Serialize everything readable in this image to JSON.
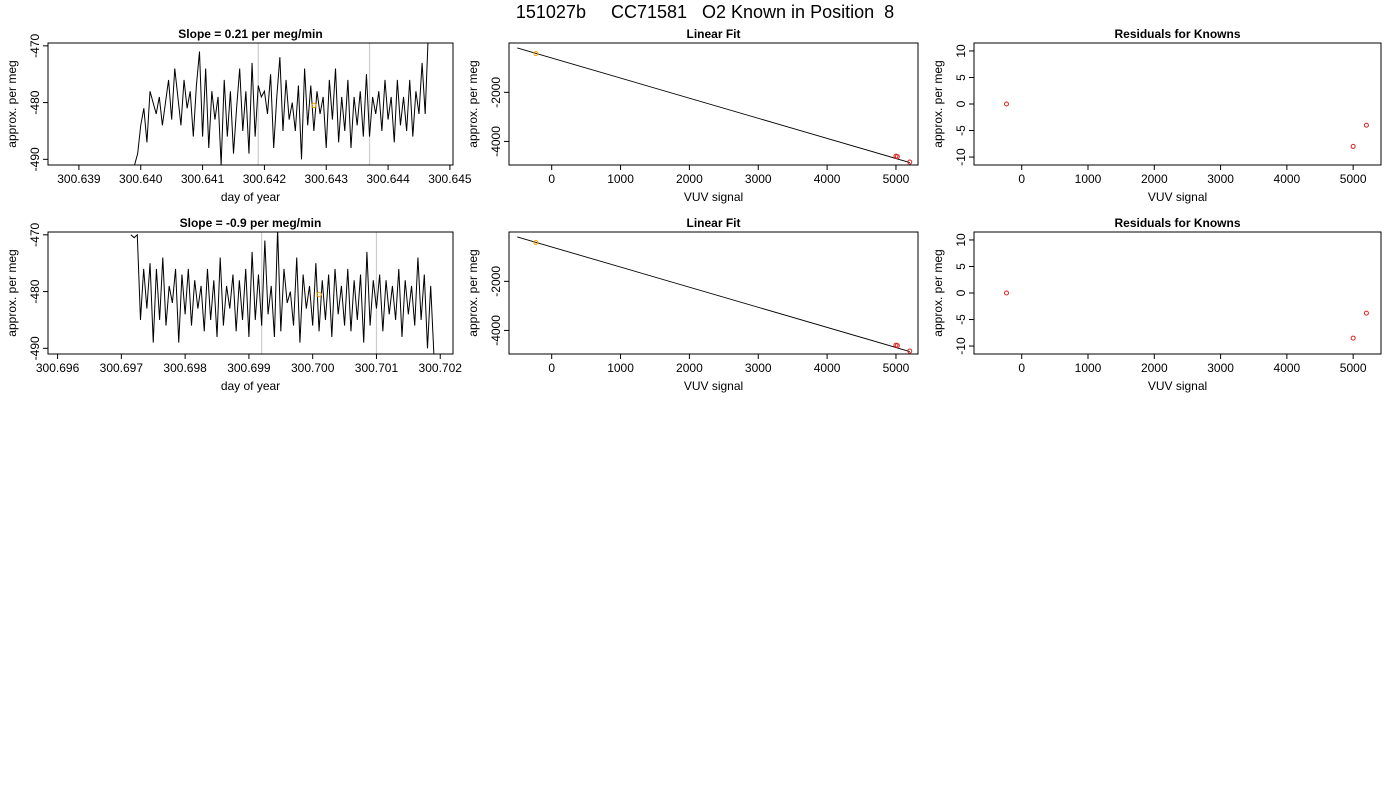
{
  "title": "151027b     CC71581   O2 Known in Position  8",
  "colors": {
    "line": "#000000",
    "marker_red": "#dd2222",
    "marker_orange": "#ffa500",
    "vline": "#cccccc"
  },
  "chart_data": [
    {
      "type": "line",
      "title": "Slope =  0.21  per meg/min",
      "xlabel": "day of year",
      "ylabel": "approx. per meg",
      "xlim": [
        300.6385,
        300.64505
      ],
      "ylim": [
        -491,
        -469.5
      ],
      "xticks": [
        300.639,
        300.64,
        300.641,
        300.642,
        300.643,
        300.644,
        300.645
      ],
      "xtick_labels": [
        "300.639",
        "300.640",
        "300.641",
        "300.642",
        "300.643",
        "300.644",
        "300.645"
      ],
      "yticks": [
        -470,
        -480,
        -490
      ],
      "ytick_labels": [
        "-470",
        "-480",
        "-490"
      ],
      "vlines": [
        300.6419,
        300.6437
      ],
      "marker": {
        "x": 300.6428,
        "y": -480.5,
        "color": "#ffa500"
      },
      "series": [
        {
          "x": [
            300.6399,
            300.63995,
            300.64,
            300.64005,
            300.6401,
            300.64015,
            300.6402,
            300.64025,
            300.6403,
            300.64035,
            300.6404,
            300.64045,
            300.6405,
            300.64055,
            300.6406,
            300.64065,
            300.6407,
            300.64075,
            300.6408,
            300.64085,
            300.6409,
            300.64095,
            300.641,
            300.64105,
            300.6411,
            300.64115,
            300.6412,
            300.64125,
            300.6413,
            300.64135,
            300.6414,
            300.64145,
            300.6415,
            300.64155,
            300.6416,
            300.64165,
            300.6417,
            300.64175,
            300.6418,
            300.64185,
            300.6419,
            300.64195,
            300.642,
            300.64205,
            300.6421,
            300.64215,
            300.6422,
            300.64225,
            300.6423,
            300.64235,
            300.6424,
            300.64245,
            300.6425,
            300.64255,
            300.6426,
            300.64265,
            300.6427,
            300.64275,
            300.6428,
            300.64285,
            300.6429,
            300.64295,
            300.643,
            300.64305,
            300.6431,
            300.64315,
            300.6432,
            300.64325,
            300.6433,
            300.64335,
            300.6434,
            300.64345,
            300.6435,
            300.64355,
            300.6436,
            300.64365,
            300.6437,
            300.64375,
            300.6438,
            300.64385,
            300.6439,
            300.64395,
            300.644,
            300.64405,
            300.6441,
            300.64415,
            300.6442,
            300.64425,
            300.6443,
            300.64435,
            300.6444,
            300.64445,
            300.6445,
            300.64455,
            300.6446,
            300.64465
          ],
          "y": [
            -491,
            -489,
            -484,
            -481,
            -487,
            -478,
            -480,
            -482,
            -479,
            -484,
            -480,
            -476,
            -483,
            -474,
            -479,
            -484,
            -476,
            -481,
            -478,
            -486,
            -477,
            -471,
            -486,
            -474,
            -488,
            -478,
            -483,
            -479,
            -491,
            -476,
            -486,
            -478,
            -489,
            -481,
            -474,
            -485,
            -478,
            -489,
            -473,
            -486,
            -477,
            -479,
            -478,
            -482,
            -475,
            -488,
            -479,
            -472,
            -485,
            -476,
            -483,
            -480,
            -485,
            -477,
            -490,
            -474,
            -484,
            -477,
            -485,
            -478,
            -482,
            -479,
            -488,
            -476,
            -483,
            -474,
            -487,
            -479,
            -485,
            -476,
            -488,
            -479,
            -484,
            -478,
            -486,
            -475,
            -486,
            -479,
            -482,
            -478,
            -485,
            -476,
            -483,
            -479,
            -487,
            -476,
            -484,
            -479,
            -485,
            -476,
            -486,
            -478,
            -482,
            -473,
            -482,
            -468
          ]
        }
      ]
    },
    {
      "type": "line",
      "title": "Linear Fit",
      "xlabel": "VUV signal",
      "ylabel": "approx. per meg",
      "xlim": [
        -620,
        5320
      ],
      "ylim": [
        -4960,
        10
      ],
      "xticks": [
        0,
        1000,
        2000,
        3000,
        4000,
        5000
      ],
      "xtick_labels": [
        "0",
        "1000",
        "2000",
        "3000",
        "4000",
        "5000"
      ],
      "yticks": [
        -2000,
        -4000
      ],
      "ytick_labels": [
        "-2000",
        "-4000"
      ],
      "line": {
        "x": [
          -500,
          5200
        ],
        "y": [
          -190,
          -4860
        ]
      },
      "points": [
        {
          "x": -230,
          "y": -420,
          "color": "#ffa500"
        },
        {
          "x": 5000,
          "y": -4600,
          "color": "#dd2222"
        },
        {
          "x": 5020,
          "y": -4620,
          "color": "#dd2222"
        },
        {
          "x": 5200,
          "y": -4840,
          "color": "#dd2222"
        }
      ]
    },
    {
      "type": "scatter",
      "title": "Residuals for Knowns",
      "xlabel": "VUV signal",
      "ylabel": "approx. per meg",
      "xlim": [
        -720,
        5420
      ],
      "ylim": [
        -11.5,
        11.5
      ],
      "xticks": [
        0,
        1000,
        2000,
        3000,
        4000,
        5000
      ],
      "xtick_labels": [
        "0",
        "1000",
        "2000",
        "3000",
        "4000",
        "5000"
      ],
      "yticks": [
        10,
        5,
        0,
        -5,
        -10
      ],
      "ytick_labels": [
        "10",
        "5",
        "0",
        "-5",
        "-10"
      ],
      "points": [
        {
          "x": -230,
          "y": 0,
          "color": "#dd2222"
        },
        {
          "x": 5000,
          "y": -8,
          "color": "#dd2222"
        },
        {
          "x": 5200,
          "y": -4,
          "color": "#dd2222"
        }
      ]
    },
    {
      "type": "line",
      "title": "Slope =  -0.9  per meg/min",
      "xlabel": "day of year",
      "ylabel": "approx. per meg",
      "xlim": [
        300.69585,
        300.7022
      ],
      "ylim": [
        -491,
        -469.5
      ],
      "xticks": [
        300.696,
        300.697,
        300.698,
        300.699,
        300.7,
        300.701,
        300.702
      ],
      "xtick_labels": [
        "300.696",
        "300.697",
        "300.698",
        "300.699",
        "300.700",
        "300.701",
        "300.702"
      ],
      "yticks": [
        -470,
        -480,
        -490
      ],
      "ytick_labels": [
        "-470",
        "-480",
        "-490"
      ],
      "vlines": [
        300.6992,
        300.701
      ],
      "marker": {
        "x": 300.7001,
        "y": -480.5,
        "color": "#ffa500"
      },
      "series": [
        {
          "x": [
            300.69715,
            300.6972,
            300.69725,
            300.6973,
            300.69735,
            300.6974,
            300.69745,
            300.6975,
            300.69755,
            300.6976,
            300.69765,
            300.6977,
            300.69775,
            300.6978,
            300.69785,
            300.6979,
            300.69795,
            300.698,
            300.69805,
            300.6981,
            300.69815,
            300.6982,
            300.69825,
            300.6983,
            300.69835,
            300.6984,
            300.69845,
            300.6985,
            300.69855,
            300.6986,
            300.69865,
            300.6987,
            300.69875,
            300.6988,
            300.69885,
            300.6989,
            300.69895,
            300.699,
            300.69905,
            300.6991,
            300.69915,
            300.6992,
            300.69925,
            300.6993,
            300.69935,
            300.6994,
            300.69945,
            300.6995,
            300.69955,
            300.6996,
            300.69965,
            300.6997,
            300.69975,
            300.6998,
            300.69985,
            300.6999,
            300.69995,
            300.7,
            300.70005,
            300.7001,
            300.70015,
            300.7002,
            300.70025,
            300.7003,
            300.70035,
            300.7004,
            300.70045,
            300.7005,
            300.70055,
            300.7006,
            300.70065,
            300.7007,
            300.70075,
            300.7008,
            300.70085,
            300.7009,
            300.70095,
            300.701,
            300.70105,
            300.7011,
            300.70115,
            300.7012,
            300.70125,
            300.7013,
            300.70135,
            300.7014,
            300.70145,
            300.7015,
            300.70155,
            300.7016,
            300.70165,
            300.7017,
            300.70175,
            300.7018,
            300.70185,
            300.7019
          ],
          "y": [
            -470,
            -470.5,
            -470,
            -485,
            -476,
            -483,
            -475,
            -489,
            -476,
            -485,
            -474,
            -486,
            -479,
            -482,
            -476,
            -489,
            -477,
            -484,
            -476,
            -486,
            -478,
            -483,
            -479,
            -487,
            -476,
            -485,
            -478,
            -488,
            -474,
            -486,
            -479,
            -483,
            -477,
            -487,
            -478,
            -485,
            -476,
            -488,
            -473,
            -485,
            -477,
            -486,
            -471,
            -484,
            -479,
            -488,
            -469,
            -487,
            -476,
            -482,
            -480,
            -486,
            -474,
            -489,
            -477,
            -483,
            -479,
            -486,
            -475,
            -487,
            -478,
            -485,
            -477,
            -488,
            -476,
            -484,
            -479,
            -486,
            -476,
            -487,
            -478,
            -485,
            -477,
            -489,
            -473,
            -486,
            -478,
            -483,
            -477,
            -487,
            -478,
            -484,
            -479,
            -485,
            -476,
            -488,
            -478,
            -484,
            -479,
            -486,
            -474,
            -485,
            -477,
            -490,
            -479,
            -491
          ]
        }
      ]
    },
    {
      "type": "line",
      "title": "Linear Fit",
      "xlabel": "VUV signal",
      "ylabel": "approx. per meg",
      "xlim": [
        -620,
        5320
      ],
      "ylim": [
        -4960,
        10
      ],
      "xticks": [
        0,
        1000,
        2000,
        3000,
        4000,
        5000
      ],
      "xtick_labels": [
        "0",
        "1000",
        "2000",
        "3000",
        "4000",
        "5000"
      ],
      "yticks": [
        -2000,
        -4000
      ],
      "ytick_labels": [
        "-2000",
        "-4000"
      ],
      "line": {
        "x": [
          -500,
          5200
        ],
        "y": [
          -190,
          -4860
        ]
      },
      "points": [
        {
          "x": -230,
          "y": -420,
          "color": "#ffa500"
        },
        {
          "x": 5000,
          "y": -4600,
          "color": "#dd2222"
        },
        {
          "x": 5020,
          "y": -4620,
          "color": "#dd2222"
        },
        {
          "x": 5200,
          "y": -4840,
          "color": "#dd2222"
        }
      ]
    },
    {
      "type": "scatter",
      "title": "Residuals for Knowns",
      "xlabel": "VUV signal",
      "ylabel": "approx. per meg",
      "xlim": [
        -720,
        5420
      ],
      "ylim": [
        -11.5,
        11.5
      ],
      "xticks": [
        0,
        1000,
        2000,
        3000,
        4000,
        5000
      ],
      "xtick_labels": [
        "0",
        "1000",
        "2000",
        "3000",
        "4000",
        "5000"
      ],
      "yticks": [
        10,
        5,
        0,
        -5,
        -10
      ],
      "ytick_labels": [
        "10",
        "5",
        "0",
        "-5",
        "-10"
      ],
      "points": [
        {
          "x": -230,
          "y": 0,
          "color": "#dd2222"
        },
        {
          "x": 5000,
          "y": -8.5,
          "color": "#dd2222"
        },
        {
          "x": 5200,
          "y": -3.8,
          "color": "#dd2222"
        }
      ]
    }
  ]
}
